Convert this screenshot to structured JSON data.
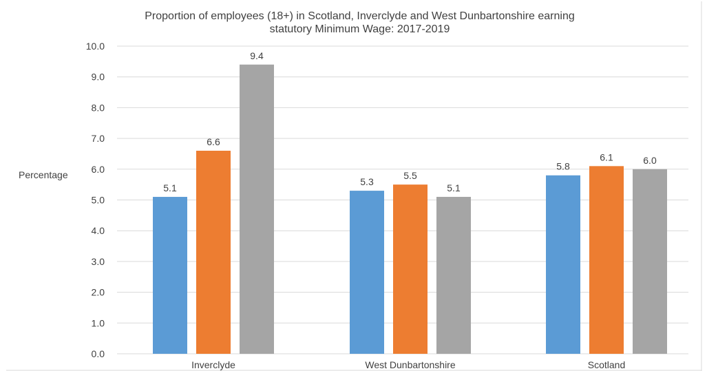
{
  "chart_data": {
    "type": "bar",
    "title_lines": [
      "Proportion of employees (18+) in Scotland, Inverclyde and West Dunbartonshire earning",
      "statutory Minimum Wage: 2017-2019"
    ],
    "ylabel": "Percentage",
    "xlabel": "",
    "ylim": [
      0,
      10
    ],
    "yticks": [
      "0.0",
      "1.0",
      "2.0",
      "3.0",
      "4.0",
      "5.0",
      "6.0",
      "7.0",
      "8.0",
      "9.0",
      "10.0"
    ],
    "categories": [
      "Inverclyde",
      "West Dunbartonshire",
      "Scotland"
    ],
    "series": [
      {
        "values": [
          5.1,
          5.3,
          5.8
        ],
        "labels": [
          "5.1",
          "5.3",
          "5.8"
        ],
        "color": "#5b9bd5"
      },
      {
        "values": [
          6.6,
          5.5,
          6.1
        ],
        "labels": [
          "6.6",
          "5.5",
          "6.1"
        ],
        "color": "#ed7d31"
      },
      {
        "values": [
          9.4,
          5.1,
          6.0
        ],
        "labels": [
          "9.4",
          "5.1",
          "6.0"
        ],
        "color": "#a5a5a5"
      }
    ],
    "grid": true,
    "legend": "none",
    "gridline_color": "#d9d9d9",
    "text_color": "#404040"
  }
}
